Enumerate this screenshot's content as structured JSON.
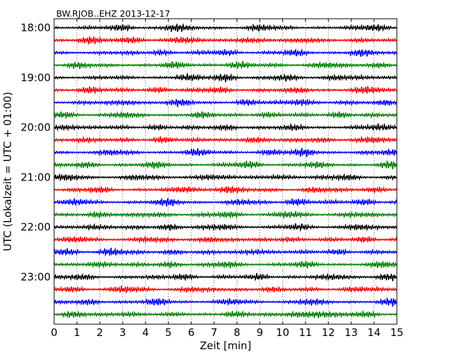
{
  "chart_data": {
    "type": "line",
    "title": "BW.RJOB..EHZ 2013-12-17",
    "xlabel": "Zeit  [min]",
    "ylabel": "UTC (Lokalzeit = UTC + 01:00)",
    "xlim": [
      0,
      15
    ],
    "x_ticks": [
      "0",
      "1",
      "2",
      "3",
      "4",
      "5",
      "6",
      "7",
      "8",
      "9",
      "10",
      "11",
      "12",
      "13",
      "14",
      "15"
    ],
    "y_ticks": [
      "18:00",
      "19:00",
      "20:00",
      "21:00",
      "22:00",
      "23:00"
    ],
    "rows_per_hour": 4,
    "row_count": 24,
    "colors": [
      "#000000",
      "#ff0000",
      "#0000ff",
      "#008000"
    ],
    "grid": "vertical dotted at each minute",
    "bursts": [
      [
        [
          5.3,
          1.0
        ],
        [
          9.0,
          0.7
        ],
        [
          14.0,
          0.9
        ],
        [
          3.0,
          0.6
        ]
      ],
      [
        [
          1.5,
          1.0
        ],
        [
          3.5,
          0.6
        ],
        [
          5.5,
          0.8
        ],
        [
          8.4,
          0.7
        ],
        [
          11.3,
          0.6
        ]
      ],
      [
        [
          4.6,
          0.6
        ],
        [
          7.5,
          0.7
        ],
        [
          10.5,
          0.6
        ],
        [
          13.4,
          0.8
        ]
      ],
      [
        [
          1.0,
          0.6
        ],
        [
          5.2,
          0.7
        ],
        [
          8.0,
          0.9
        ],
        [
          11.8,
          0.8
        ],
        [
          14.3,
          0.6
        ]
      ],
      [
        [
          5.8,
          0.7
        ],
        [
          7.5,
          1.0
        ],
        [
          10.1,
          0.6
        ],
        [
          12.4,
          0.7
        ]
      ],
      [
        [
          1.5,
          0.8
        ],
        [
          4.5,
          0.6
        ],
        [
          7.2,
          0.7
        ],
        [
          10.8,
          0.6
        ],
        [
          13.8,
          0.9
        ]
      ],
      [
        [
          3.2,
          0.6
        ],
        [
          5.5,
          0.8
        ],
        [
          8.4,
          0.6
        ],
        [
          10.8,
          0.9
        ],
        [
          14.6,
          0.7
        ]
      ],
      [
        [
          0.4,
          0.7
        ],
        [
          3.0,
          0.6
        ],
        [
          6.4,
          0.7
        ],
        [
          9.2,
          0.6
        ],
        [
          12.5,
          0.8
        ]
      ],
      [
        [
          0.6,
          0.7
        ],
        [
          4.5,
          0.6
        ],
        [
          7.6,
          0.7
        ],
        [
          10.6,
          0.6
        ],
        [
          14.3,
          0.8
        ]
      ],
      [
        [
          1.2,
          0.6
        ],
        [
          4.8,
          0.8
        ],
        [
          8.6,
          0.7
        ],
        [
          11.6,
          0.6
        ],
        [
          14.0,
          0.7
        ]
      ],
      [
        [
          2.5,
          0.6
        ],
        [
          6.2,
          0.9
        ],
        [
          9.5,
          0.6
        ],
        [
          11.0,
          1.0
        ],
        [
          14.8,
          0.7
        ]
      ],
      [
        [
          1.5,
          0.7
        ],
        [
          4.5,
          0.7
        ],
        [
          8.5,
          0.8
        ],
        [
          11.4,
          0.6
        ],
        [
          14.7,
          0.9
        ]
      ],
      [
        [
          0.6,
          0.7
        ],
        [
          3.6,
          0.6
        ],
        [
          6.7,
          0.7
        ],
        [
          9.8,
          0.6
        ],
        [
          12.8,
          0.8
        ]
      ],
      [
        [
          2.0,
          0.6
        ],
        [
          5.8,
          0.7
        ],
        [
          7.6,
          1.0
        ],
        [
          11.4,
          0.7
        ],
        [
          14.2,
          0.6
        ]
      ],
      [
        [
          1.0,
          0.7
        ],
        [
          5.0,
          1.0
        ],
        [
          8.2,
          0.6
        ],
        [
          10.6,
          0.9
        ],
        [
          13.6,
          0.8
        ]
      ],
      [
        [
          1.8,
          0.7
        ],
        [
          4.5,
          0.6
        ],
        [
          7.6,
          0.7
        ],
        [
          10.2,
          0.8
        ],
        [
          13.0,
          0.6
        ]
      ],
      [
        [
          1.6,
          0.6
        ],
        [
          5.0,
          0.9
        ],
        [
          7.4,
          0.6
        ],
        [
          10.6,
          0.6
        ],
        [
          13.2,
          0.8
        ]
      ],
      [
        [
          1.0,
          0.7
        ],
        [
          4.0,
          0.6
        ],
        [
          6.8,
          0.8
        ],
        [
          10.2,
          0.6
        ],
        [
          13.6,
          0.7
        ]
      ],
      [
        [
          0.5,
          0.8
        ],
        [
          2.5,
          1.0
        ],
        [
          5.2,
          0.6
        ],
        [
          8.8,
          0.7
        ],
        [
          12.4,
          0.7
        ]
      ],
      [
        [
          1.8,
          0.7
        ],
        [
          5.0,
          0.8
        ],
        [
          7.6,
          0.7
        ],
        [
          11.0,
          0.6
        ],
        [
          14.4,
          0.7
        ]
      ],
      [
        [
          1.2,
          0.6
        ],
        [
          5.6,
          0.8
        ],
        [
          9.0,
          0.7
        ],
        [
          12.4,
          0.6
        ],
        [
          14.6,
          0.8
        ]
      ],
      [
        [
          0.8,
          0.6
        ],
        [
          3.0,
          0.8
        ],
        [
          6.0,
          0.7
        ],
        [
          9.4,
          0.6
        ],
        [
          13.2,
          0.8
        ]
      ],
      [
        [
          1.6,
          0.6
        ],
        [
          4.6,
          0.8
        ],
        [
          7.8,
          0.6
        ],
        [
          11.2,
          0.7
        ],
        [
          14.8,
          1.0
        ]
      ],
      [
        [
          0.8,
          0.6
        ],
        [
          3.2,
          0.6
        ],
        [
          7.8,
          0.7
        ],
        [
          10.6,
          0.8
        ],
        [
          11.6,
          0.9
        ],
        [
          13.6,
          0.7
        ]
      ]
    ]
  }
}
